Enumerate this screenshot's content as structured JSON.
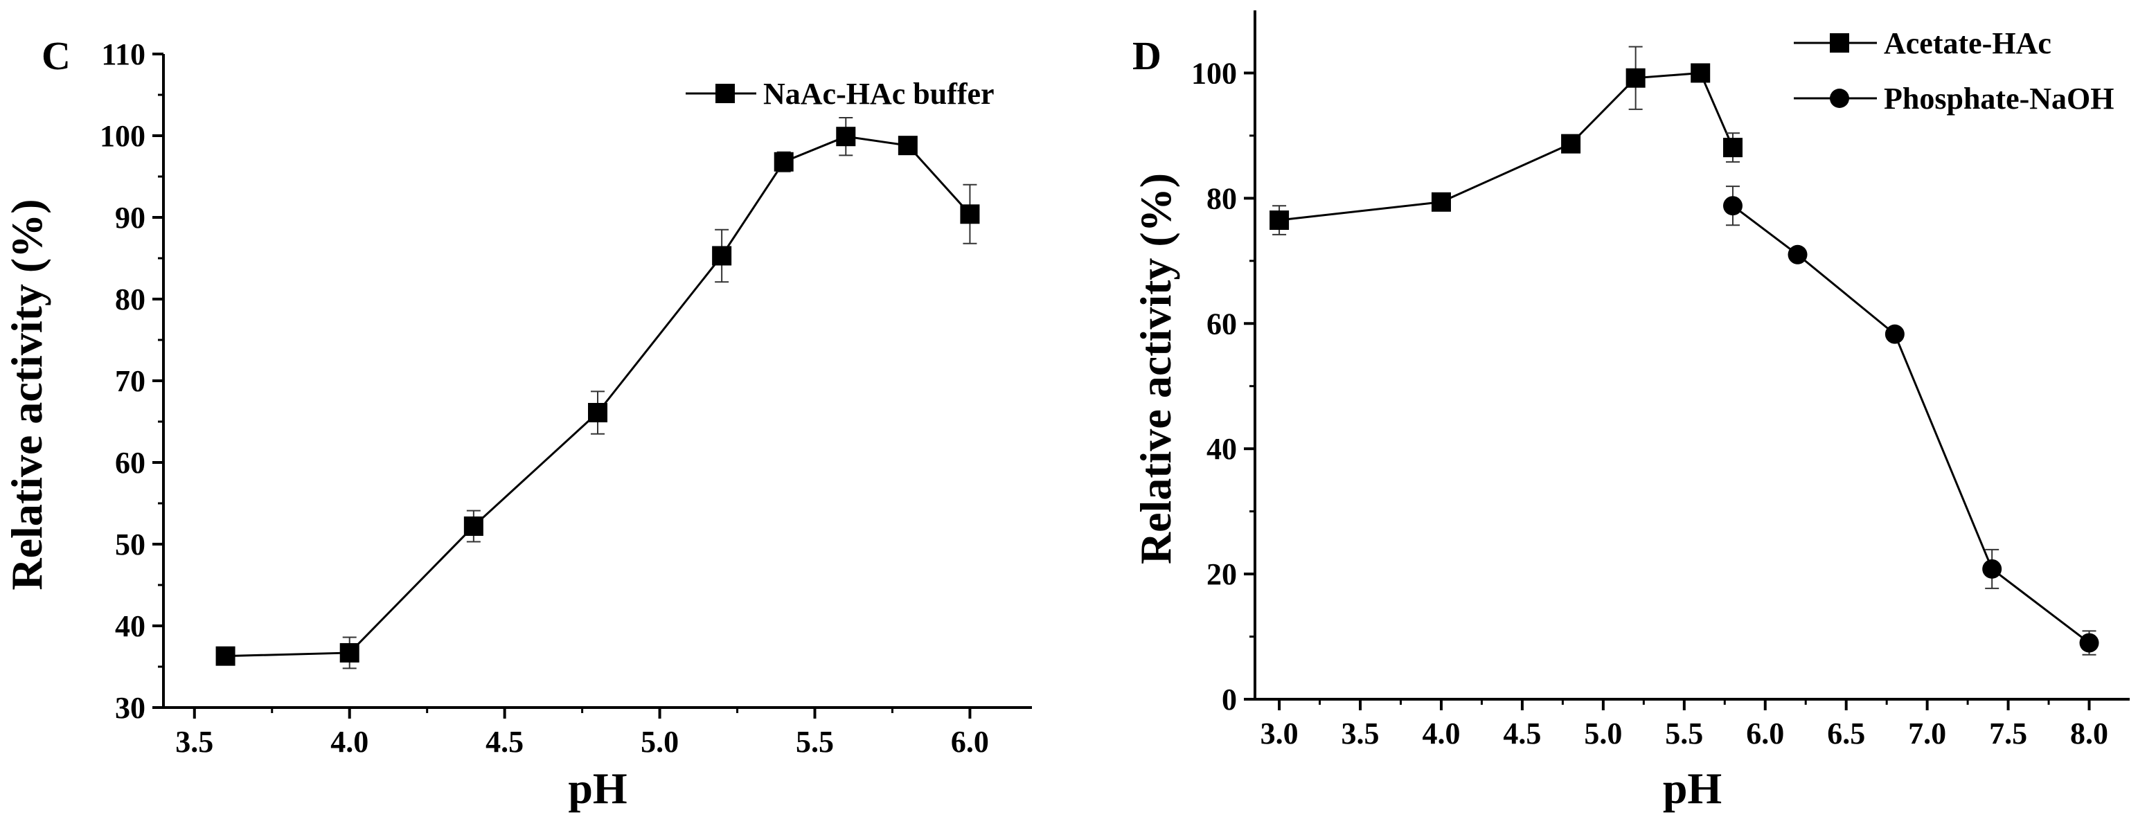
{
  "chart_data": [
    {
      "panel_label": "C",
      "type": "line",
      "xlabel": "pH",
      "ylabel": "Relative activity (%)",
      "xlim": [
        3.4,
        6.2
      ],
      "ylim": [
        30,
        110
      ],
      "xticks": [
        "3.5",
        "4.0",
        "4.5",
        "5.0",
        "5.5",
        "6.0"
      ],
      "xtick_values": [
        3.5,
        4.0,
        4.5,
        5.0,
        5.5,
        6.0
      ],
      "yticks": [
        "30",
        "40",
        "50",
        "60",
        "70",
        "80",
        "90",
        "100",
        "110"
      ],
      "ytick_values": [
        30,
        40,
        50,
        60,
        70,
        80,
        90,
        100,
        110
      ],
      "legend_position": "top-right",
      "series": [
        {
          "name": "NaAc-HAc buffer",
          "marker": "square",
          "x": [
            3.6,
            4.0,
            4.4,
            4.8,
            5.2,
            5.4,
            5.6,
            5.8,
            6.0
          ],
          "y": [
            36.3,
            36.7,
            52.2,
            66.1,
            85.3,
            96.8,
            99.9,
            98.8,
            90.4
          ],
          "error": [
            1.0,
            1.9,
            1.9,
            2.6,
            3.2,
            1.2,
            2.3,
            0.6,
            3.6
          ]
        }
      ],
      "grid": false
    },
    {
      "panel_label": "D",
      "type": "line",
      "xlabel": "pH",
      "ylabel": "Relative activity (%)",
      "xlim": [
        2.85,
        8.25
      ],
      "ylim": [
        0,
        110
      ],
      "xticks": [
        "3.0",
        "3.5",
        "4.0",
        "4.5",
        "5.0",
        "5.5",
        "6.0",
        "6.5",
        "7.0",
        "7.5",
        "8.0"
      ],
      "xtick_values": [
        3.0,
        3.5,
        4.0,
        4.5,
        5.0,
        5.5,
        6.0,
        6.5,
        7.0,
        7.5,
        8.0
      ],
      "yticks": [
        "0",
        "20",
        "40",
        "60",
        "80",
        "100"
      ],
      "ytick_values": [
        0,
        20,
        40,
        60,
        80,
        100
      ],
      "legend_position": "top-right",
      "series": [
        {
          "name": "Acetate-HAc",
          "marker": "square",
          "x": [
            3.0,
            4.0,
            4.8,
            5.2,
            5.6,
            5.8
          ],
          "y": [
            76.5,
            79.4,
            88.7,
            99.2,
            100.0,
            88.1
          ],
          "error": [
            2.3,
            0.6,
            0.8,
            5.0,
            0.8,
            2.3
          ]
        },
        {
          "name": "Phosphate-NaOH",
          "marker": "circle",
          "x": [
            5.8,
            6.2,
            6.8,
            7.4,
            8.0
          ],
          "y": [
            78.8,
            71.0,
            58.3,
            20.8,
            9.0
          ],
          "error": [
            3.1,
            0.8,
            0.8,
            3.1,
            1.9
          ]
        }
      ],
      "grid": false
    }
  ]
}
